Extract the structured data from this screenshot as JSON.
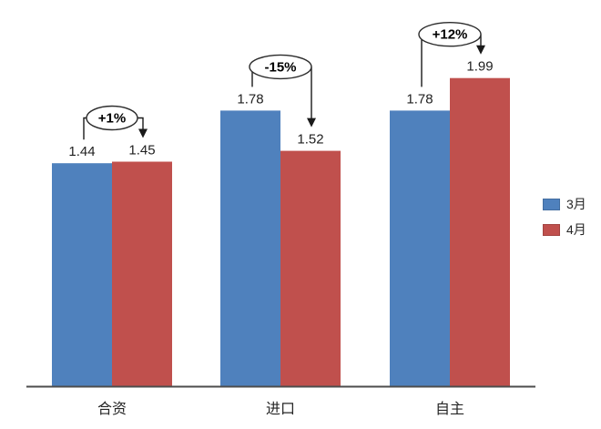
{
  "chart_data": {
    "type": "bar",
    "categories": [
      "合资",
      "进口",
      "自主"
    ],
    "series": [
      {
        "name": "3月",
        "color": "#4F81BD",
        "values": [
          1.44,
          1.78,
          1.78
        ]
      },
      {
        "name": "4月",
        "color": "#C0504D",
        "values": [
          1.45,
          1.52,
          1.99
        ]
      }
    ],
    "value_labels": [
      [
        "1.44",
        "1.78",
        "1.78"
      ],
      [
        "1.45",
        "1.52",
        "1.99"
      ]
    ],
    "annotations": [
      {
        "category": "合资",
        "label": "+1%"
      },
      {
        "category": "进口",
        "label": "-15%"
      },
      {
        "category": "自主",
        "label": "+12%"
      }
    ],
    "title": "",
    "xlabel": "",
    "ylabel": "",
    "ylim": [
      0,
      2.2
    ],
    "gridlines": false,
    "legend_position": "right",
    "axis_color": "#4d4d4d",
    "text_color": "#262626",
    "annotation_line_color": "#1a1a1a",
    "background": "#ffffff"
  }
}
